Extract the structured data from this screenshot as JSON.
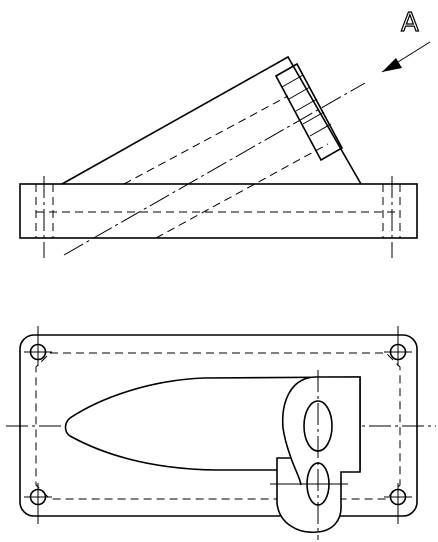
{
  "view_arrow": {
    "label": "A"
  }
}
